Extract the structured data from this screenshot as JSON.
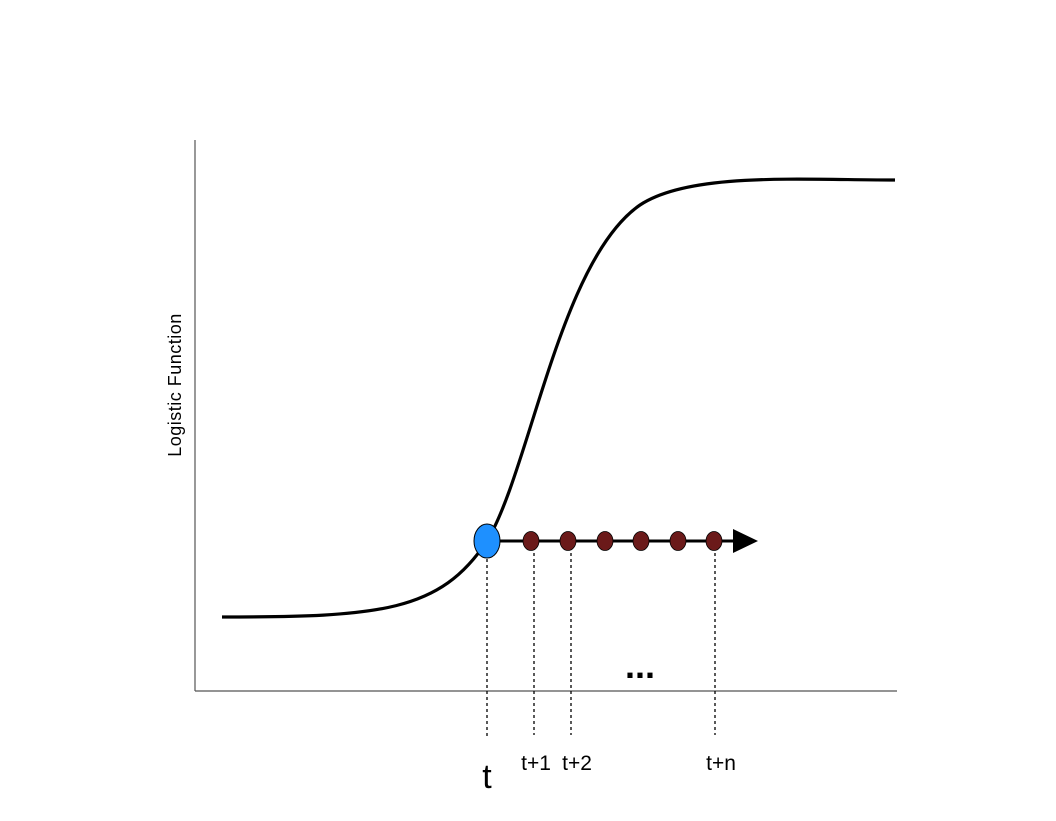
{
  "diagram": {
    "y_axis_label": "Logistic Function",
    "current_label": "t",
    "step_labels": [
      "t+1",
      "t+2",
      "t+n"
    ],
    "ellipsis": "...",
    "colors": {
      "curve": "#000000",
      "axis": "#555555",
      "current_point": "#1e90ff",
      "future_points": "#6b1a1a",
      "arrow": "#000000"
    }
  }
}
